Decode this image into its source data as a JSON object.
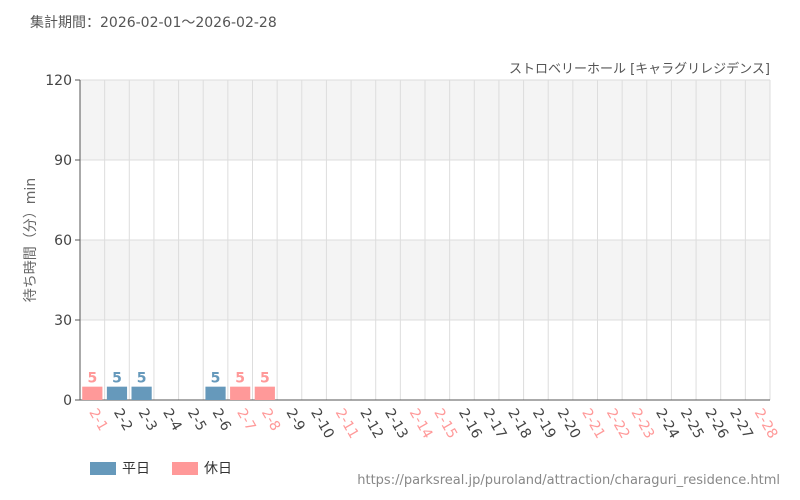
{
  "period_label": "集計期間：2026-02-01～2026-02-28",
  "source_url": "https://parksreal.jp/puroland/attraction/charaguri_residence.html",
  "colors": {
    "weekday": "#6699bb",
    "holiday": "#ff9999",
    "grid": "#dddddd",
    "band": "#f4f4f4",
    "axis": "#555555"
  },
  "chart_data": {
    "type": "bar",
    "title": "ストロベリーホール [キャラグリレジデンス]",
    "ylabel": "待ち時間（分）min",
    "xlabel": "",
    "ylim": [
      0,
      120
    ],
    "yticks": [
      0,
      30,
      60,
      90,
      120
    ],
    "grid": true,
    "legend_position": "bottom-left",
    "categories": [
      "2-1",
      "2-2",
      "2-3",
      "2-4",
      "2-5",
      "2-6",
      "2-7",
      "2-8",
      "2-9",
      "2-10",
      "2-11",
      "2-12",
      "2-13",
      "2-14",
      "2-15",
      "2-16",
      "2-17",
      "2-18",
      "2-19",
      "2-20",
      "2-21",
      "2-22",
      "2-23",
      "2-24",
      "2-25",
      "2-26",
      "2-27",
      "2-28"
    ],
    "holiday_flags": [
      true,
      false,
      false,
      false,
      false,
      false,
      true,
      true,
      false,
      false,
      true,
      false,
      false,
      true,
      true,
      false,
      false,
      false,
      false,
      false,
      true,
      true,
      true,
      false,
      false,
      false,
      false,
      true
    ],
    "series": [
      {
        "name": "平日",
        "values": [
          null,
          5,
          5,
          null,
          null,
          5,
          null,
          null,
          null,
          null,
          null,
          null,
          null,
          null,
          null,
          null,
          null,
          null,
          null,
          null,
          null,
          null,
          null,
          null,
          null,
          null,
          null,
          null
        ]
      },
      {
        "name": "休日",
        "values": [
          5,
          null,
          null,
          null,
          null,
          null,
          5,
          5,
          null,
          null,
          null,
          null,
          null,
          null,
          null,
          null,
          null,
          null,
          null,
          null,
          null,
          null,
          null,
          null,
          null,
          null,
          null,
          null
        ]
      }
    ]
  }
}
